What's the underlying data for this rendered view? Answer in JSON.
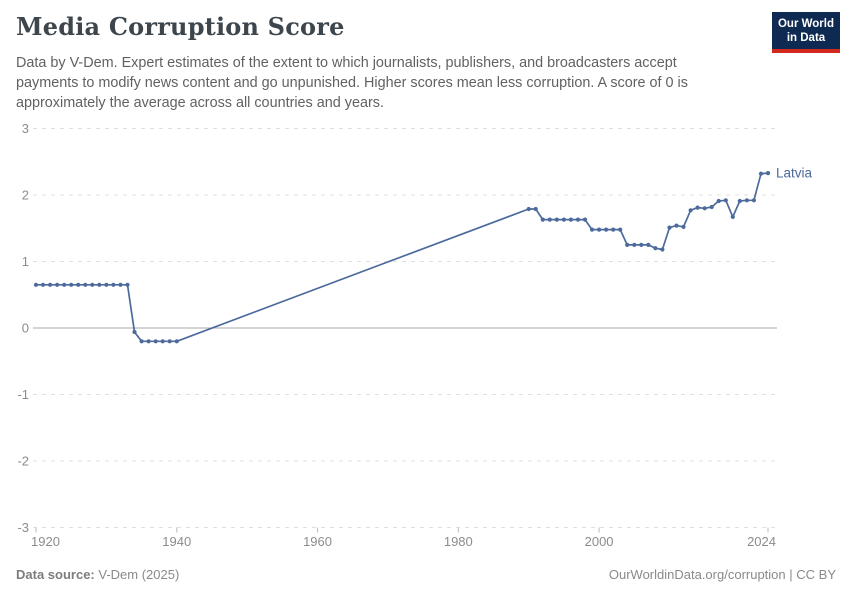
{
  "header": {
    "title": "Media Corruption Score",
    "subtitle": "Data by V-Dem. Expert estimates of the extent to which journalists, publishers, and broadcasters accept payments to modify news content and go unpunished. Higher scores mean less corruption. A score of 0 is approximately the average across all countries and years."
  },
  "logo": {
    "line1": "Our World",
    "line2": "in Data",
    "bg_color": "#0E2A52",
    "accent_color": "#D2281E"
  },
  "chart_data": {
    "type": "line",
    "title": "Media Corruption Score",
    "entity_label": "Latvia",
    "xlabel": "",
    "ylabel": "",
    "x_ticks": [
      1920,
      1940,
      1960,
      1980,
      2000,
      2024
    ],
    "y_ticks": [
      3,
      2,
      1,
      0,
      -1,
      -2,
      -3
    ],
    "x_range": [
      1920,
      2025.5
    ],
    "y_range": [
      -3,
      3
    ],
    "grid": "horizontal dashed, solid zero line",
    "legend_position": "end-of-line label",
    "series": [
      {
        "name": "Latvia",
        "color": "#4C6A9C",
        "points": [
          [
            1920,
            0.65
          ],
          [
            1921,
            0.65
          ],
          [
            1922,
            0.65
          ],
          [
            1923,
            0.65
          ],
          [
            1924,
            0.65
          ],
          [
            1925,
            0.65
          ],
          [
            1926,
            0.65
          ],
          [
            1927,
            0.65
          ],
          [
            1928,
            0.65
          ],
          [
            1929,
            0.65
          ],
          [
            1930,
            0.65
          ],
          [
            1931,
            0.65
          ],
          [
            1932,
            0.65
          ],
          [
            1933,
            0.65
          ],
          [
            1934,
            -0.06
          ],
          [
            1935,
            -0.2
          ],
          [
            1936,
            -0.2
          ],
          [
            1937,
            -0.2
          ],
          [
            1938,
            -0.2
          ],
          [
            1939,
            -0.2
          ],
          [
            1940,
            -0.2
          ],
          [
            1990,
            1.79
          ],
          [
            1991,
            1.79
          ],
          [
            1992,
            1.63
          ],
          [
            1993,
            1.63
          ],
          [
            1994,
            1.63
          ],
          [
            1995,
            1.63
          ],
          [
            1996,
            1.63
          ],
          [
            1997,
            1.63
          ],
          [
            1998,
            1.63
          ],
          [
            1999,
            1.48
          ],
          [
            2000,
            1.48
          ],
          [
            2001,
            1.48
          ],
          [
            2002,
            1.48
          ],
          [
            2003,
            1.48
          ],
          [
            2004,
            1.25
          ],
          [
            2005,
            1.25
          ],
          [
            2006,
            1.25
          ],
          [
            2007,
            1.25
          ],
          [
            2008,
            1.2
          ],
          [
            2009,
            1.18
          ],
          [
            2010,
            1.51
          ],
          [
            2011,
            1.54
          ],
          [
            2012,
            1.52
          ],
          [
            2013,
            1.77
          ],
          [
            2014,
            1.81
          ],
          [
            2015,
            1.8
          ],
          [
            2016,
            1.82
          ],
          [
            2017,
            1.91
          ],
          [
            2018,
            1.92
          ],
          [
            2019,
            1.67
          ],
          [
            2020,
            1.91
          ],
          [
            2021,
            1.92
          ],
          [
            2022,
            1.92
          ],
          [
            2023,
            2.32
          ],
          [
            2024,
            2.33
          ]
        ]
      }
    ]
  },
  "colors": {
    "grid": "#DFDFDF",
    "zero_line": "#A8A8A8",
    "tick": "#BBBBBB",
    "axis_text": "#8C8C8C"
  },
  "footer": {
    "source_label": "Data source:",
    "source_value": " V-Dem (2025)",
    "attribution_link": "OurWorldinData.org/corruption",
    "attribution_suffix": " | CC BY"
  }
}
